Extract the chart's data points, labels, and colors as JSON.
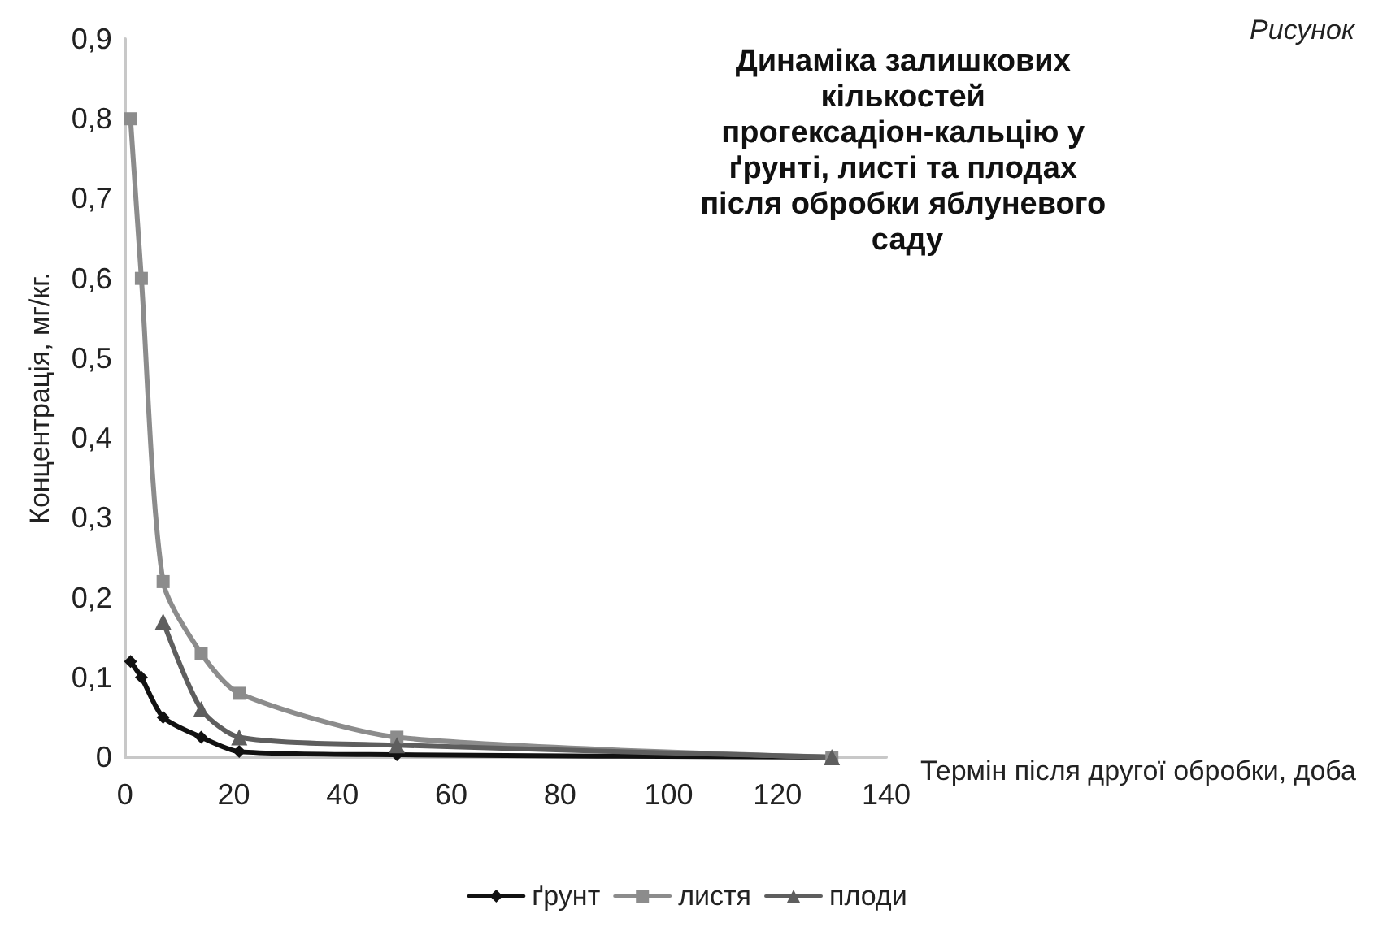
{
  "chart_data": {
    "type": "line",
    "title": "Динаміка залишкових кількостей прогексадіон-кальцію у ґрунті, листі та плодах після обробки яблуневого саду",
    "annotations": [
      "Рисунок"
    ],
    "xlabel": "Термін після другої обробки, доба",
    "ylabel": "Концентрація, мг/кг.",
    "series": [
      {
        "name": "ґрунт",
        "color": "#111111",
        "marker": "diamond",
        "x": [
          1,
          3,
          7,
          14,
          21,
          50,
          130
        ],
        "values": [
          0.12,
          0.1,
          0.05,
          0.025,
          0.007,
          0.003,
          0
        ]
      },
      {
        "name": "листя",
        "color": "#8c8c8c",
        "marker": "square",
        "x": [
          1,
          3,
          7,
          14,
          21,
          50,
          130
        ],
        "values": [
          0.8,
          0.6,
          0.22,
          0.13,
          0.08,
          0.025,
          0
        ]
      },
      {
        "name": "плоди",
        "color": "#5e5e5e",
        "marker": "triangle",
        "x": [
          7,
          14,
          21,
          50,
          130
        ],
        "values": [
          0.17,
          0.06,
          0.025,
          0.015,
          0
        ]
      }
    ],
    "xlim": [
      0,
      140
    ],
    "xticks": [
      0,
      20,
      40,
      60,
      80,
      100,
      120,
      140
    ],
    "ylim": [
      0,
      0.9
    ],
    "yticks": [
      0,
      {
        "value": 0.1,
        "label": "0,1"
      },
      {
        "value": 0.2,
        "label": "0,2"
      },
      {
        "value": 0.3,
        "label": "0,3"
      },
      {
        "value": 0.4,
        "label": "0,4"
      },
      {
        "value": 0.5,
        "label": "0,5"
      },
      {
        "value": 0.6,
        "label": "0,6"
      },
      {
        "value": 0.7,
        "label": "0,7"
      },
      {
        "value": 0.8,
        "label": "0,8"
      },
      {
        "value": 0.9,
        "label": "0,9"
      }
    ],
    "grid": false,
    "legend": "bottom",
    "line_style": "solid"
  }
}
